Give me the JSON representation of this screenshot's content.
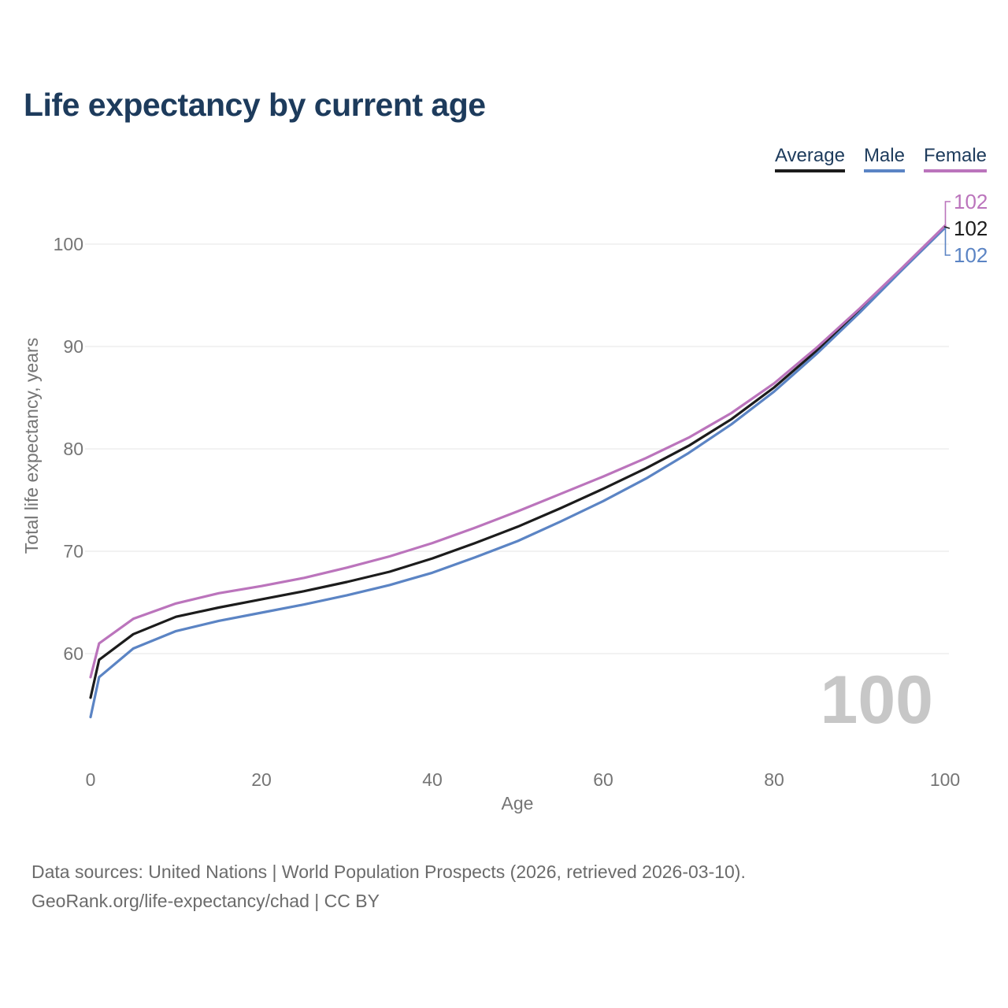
{
  "title": "Life expectancy by current age",
  "title_color": "#1d3b5c",
  "legend": {
    "items": [
      {
        "label": "Average",
        "color": "#1c1c1c"
      },
      {
        "label": "Male",
        "color": "#5b84c4"
      },
      {
        "label": "Female",
        "color": "#bb74bc"
      }
    ]
  },
  "watermark": "100",
  "watermark_color": "#c7c7c7",
  "axis_text_color": "#757575",
  "gridline_color": "#ebebeb",
  "chart_data": {
    "type": "line",
    "title": "Life expectancy by current age",
    "xlabel": "Age",
    "ylabel": "Total life expectancy, years",
    "x_ticks": [
      0,
      20,
      40,
      60,
      80,
      100
    ],
    "y_ticks": [
      60,
      70,
      80,
      90,
      100
    ],
    "xlim": [
      0,
      100
    ],
    "ylim": [
      53,
      104
    ],
    "grid": "horizontal-only",
    "legend_position": "top-right",
    "x": [
      0,
      1,
      5,
      10,
      15,
      20,
      25,
      30,
      35,
      40,
      45,
      50,
      55,
      60,
      65,
      70,
      75,
      80,
      85,
      90,
      95,
      100
    ],
    "series": [
      {
        "name": "Average",
        "color": "#1c1c1c",
        "end_label": "102",
        "values": [
          55.7,
          59.4,
          61.9,
          63.6,
          64.5,
          65.3,
          66.1,
          67.0,
          68.0,
          69.3,
          70.8,
          72.4,
          74.2,
          76.1,
          78.1,
          80.3,
          82.9,
          86.0,
          89.6,
          93.5,
          97.6,
          101.7
        ]
      },
      {
        "name": "Male",
        "color": "#5b84c4",
        "end_label": "102",
        "values": [
          53.8,
          57.7,
          60.5,
          62.2,
          63.2,
          64.0,
          64.8,
          65.7,
          66.7,
          67.9,
          69.4,
          71.0,
          72.9,
          74.9,
          77.1,
          79.6,
          82.4,
          85.6,
          89.3,
          93.3,
          97.5,
          101.6
        ]
      },
      {
        "name": "Female",
        "color": "#bb74bc",
        "end_label": "102",
        "values": [
          57.7,
          61.0,
          63.4,
          64.9,
          65.9,
          66.6,
          67.4,
          68.4,
          69.5,
          70.8,
          72.3,
          73.9,
          75.6,
          77.3,
          79.1,
          81.1,
          83.5,
          86.4,
          89.9,
          93.7,
          97.7,
          101.8
        ]
      }
    ]
  },
  "footer": {
    "line1": "Data sources: United Nations | World Population Prospects (2026, retrieved 2026-03-10).",
    "line2": "GeoRank.org/life-expectancy/chad | CC BY"
  }
}
